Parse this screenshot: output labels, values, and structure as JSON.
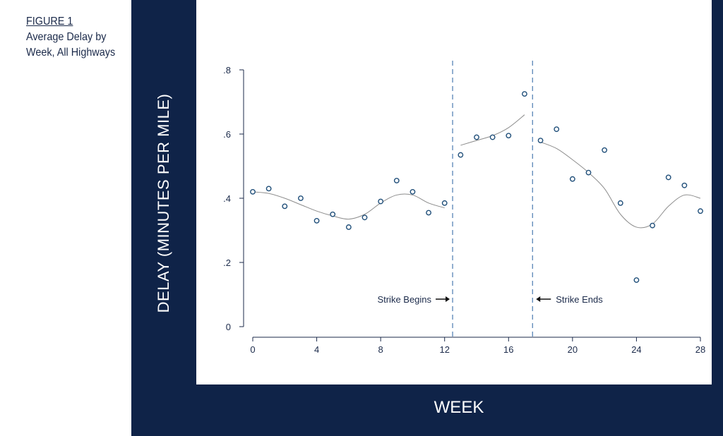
{
  "caption": {
    "label": "FIGURE 1",
    "title": "Average Delay by Week, All Highways"
  },
  "colors": {
    "frame": "#0f2348",
    "marker": "#1f4e79",
    "dashed": "#4a7ab0",
    "smooth": "#8c8c8c"
  },
  "chart_data": {
    "type": "scatter",
    "xlabel": "WEEK",
    "ylabel": "DELAY (MINUTES PER MILE)",
    "xlim": [
      0,
      28
    ],
    "ylim": [
      0,
      0.8
    ],
    "xticks": [
      0,
      4,
      8,
      12,
      16,
      20,
      24,
      28
    ],
    "xtick_labels": [
      "0",
      "4",
      "8",
      "12",
      "16",
      "20",
      "24",
      "28"
    ],
    "yticks": [
      0,
      0.2,
      0.4,
      0.6,
      0.8
    ],
    "ytick_labels": [
      "0",
      ".2",
      ".4",
      ".6",
      ".8"
    ],
    "grid": false,
    "points": [
      {
        "x": 0,
        "y": 0.42
      },
      {
        "x": 1,
        "y": 0.43
      },
      {
        "x": 2,
        "y": 0.375
      },
      {
        "x": 3,
        "y": 0.4
      },
      {
        "x": 4,
        "y": 0.33
      },
      {
        "x": 5,
        "y": 0.35
      },
      {
        "x": 6,
        "y": 0.31
      },
      {
        "x": 7,
        "y": 0.34
      },
      {
        "x": 8,
        "y": 0.39
      },
      {
        "x": 9,
        "y": 0.455
      },
      {
        "x": 10,
        "y": 0.42
      },
      {
        "x": 11,
        "y": 0.355
      },
      {
        "x": 12,
        "y": 0.385
      },
      {
        "x": 13,
        "y": 0.535
      },
      {
        "x": 14,
        "y": 0.59
      },
      {
        "x": 15,
        "y": 0.59
      },
      {
        "x": 16,
        "y": 0.595
      },
      {
        "x": 17,
        "y": 0.725
      },
      {
        "x": 18,
        "y": 0.58
      },
      {
        "x": 19,
        "y": 0.615
      },
      {
        "x": 20,
        "y": 0.46
      },
      {
        "x": 21,
        "y": 0.48
      },
      {
        "x": 22,
        "y": 0.55
      },
      {
        "x": 23,
        "y": 0.385
      },
      {
        "x": 24,
        "y": 0.145
      },
      {
        "x": 25,
        "y": 0.315
      },
      {
        "x": 26,
        "y": 0.465
      },
      {
        "x": 27,
        "y": 0.44
      },
      {
        "x": 28,
        "y": 0.36
      }
    ],
    "smooth_segments": [
      [
        [
          0,
          0.42
        ],
        [
          1,
          0.415
        ],
        [
          2,
          0.4
        ],
        [
          3,
          0.38
        ],
        [
          4,
          0.36
        ],
        [
          5,
          0.345
        ],
        [
          6,
          0.335
        ],
        [
          7,
          0.35
        ],
        [
          8,
          0.385
        ],
        [
          9,
          0.41
        ],
        [
          10,
          0.41
        ],
        [
          11,
          0.385
        ],
        [
          12,
          0.37
        ]
      ],
      [
        [
          13,
          0.565
        ],
        [
          14,
          0.58
        ],
        [
          15,
          0.595
        ],
        [
          16,
          0.62
        ],
        [
          17,
          0.66
        ]
      ],
      [
        [
          18,
          0.575
        ],
        [
          19,
          0.555
        ],
        [
          20,
          0.52
        ],
        [
          21,
          0.48
        ],
        [
          22,
          0.43
        ],
        [
          23,
          0.35
        ],
        [
          24,
          0.31
        ],
        [
          25,
          0.32
        ],
        [
          26,
          0.375
        ],
        [
          27,
          0.41
        ],
        [
          28,
          0.4
        ]
      ]
    ],
    "vlines": [
      {
        "x": 12.5,
        "label": "Strike Begins",
        "arrow": "right"
      },
      {
        "x": 17.5,
        "label": "Strike Ends",
        "arrow": "left"
      }
    ]
  }
}
